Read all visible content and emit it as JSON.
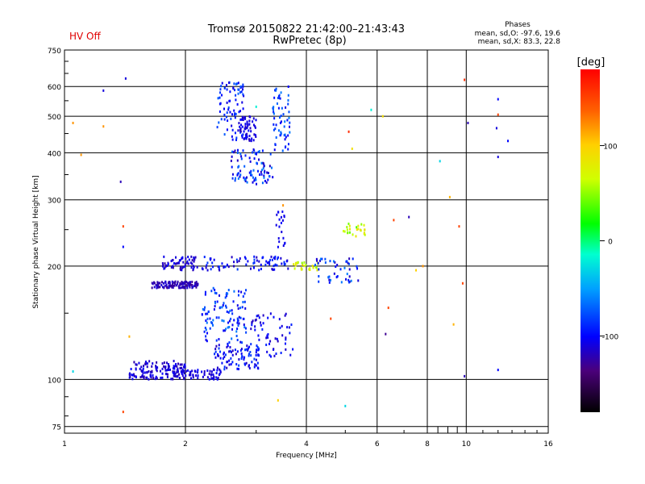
{
  "header": {
    "status": "HV Off",
    "status_color": "#e00000",
    "title": "Tromsø 20150822 21:42:00–21:43:43",
    "subtitle": "RwPretec (8p)",
    "phases_heading": "Phases",
    "phases_o": "mean, sd,O: -97.6, 19.6",
    "phases_x": "mean, sd,X:  83.3, 22.8"
  },
  "chart_data": {
    "type": "scatter",
    "xlabel": "Frequency [MHz]",
    "ylabel": "Stationary phase Virtual Height [km]",
    "xscale": "log",
    "yscale": "log",
    "xlim": [
      1,
      16
    ],
    "ylim": [
      72,
      750
    ],
    "x_ticks": [
      1,
      2,
      4,
      6,
      8,
      10,
      16
    ],
    "y_ticks": [
      75,
      100,
      200,
      300,
      400,
      500,
      600,
      750
    ],
    "grid": true,
    "colorbar": {
      "label": "[deg]",
      "range": [
        -180,
        180
      ],
      "ticks": [
        100,
        0,
        -100
      ],
      "colormap": "rainbow"
    },
    "clusters": [
      {
        "f": [
          1.45,
          2.0
        ],
        "h": [
          100,
          112
        ],
        "n": 140,
        "phase": [
          -125,
          -100
        ]
      },
      {
        "f": [
          1.9,
          2.45
        ],
        "h": [
          100,
          106
        ],
        "n": 60,
        "phase": [
          -120,
          -100
        ]
      },
      {
        "f": [
          2.35,
          3.1
        ],
        "h": [
          106,
          125
        ],
        "n": 90,
        "phase": [
          -120,
          -80
        ]
      },
      {
        "f": [
          2.2,
          2.85
        ],
        "h": [
          125,
          175
        ],
        "n": 110,
        "phase": [
          -110,
          -60
        ]
      },
      {
        "f": [
          2.9,
          3.7
        ],
        "h": [
          115,
          150
        ],
        "n": 60,
        "phase": [
          -120,
          -90
        ]
      },
      {
        "f": [
          1.65,
          2.15
        ],
        "h": [
          175,
          182
        ],
        "n": 120,
        "phase": [
          -130,
          -110
        ]
      },
      {
        "f": [
          1.75,
          2.15
        ],
        "h": [
          195,
          212
        ],
        "n": 60,
        "phase": [
          -125,
          -100
        ]
      },
      {
        "f": [
          2.2,
          3.8
        ],
        "h": [
          195,
          212
        ],
        "n": 80,
        "phase": [
          -120,
          -80
        ]
      },
      {
        "f": [
          3.7,
          4.3
        ],
        "h": [
          195,
          205
        ],
        "n": 25,
        "phase": [
          40,
          90
        ]
      },
      {
        "f": [
          4.2,
          5.4
        ],
        "h": [
          180,
          210
        ],
        "n": 45,
        "phase": [
          -120,
          -60
        ]
      },
      {
        "f": [
          4.9,
          5.6
        ],
        "h": [
          240,
          260
        ],
        "n": 25,
        "phase": [
          30,
          90
        ]
      },
      {
        "f": [
          3.35,
          3.55
        ],
        "h": [
          220,
          280
        ],
        "n": 20,
        "phase": [
          -110,
          -100
        ]
      },
      {
        "f": [
          2.4,
          2.8
        ],
        "h": [
          430,
          620
        ],
        "n": 80,
        "phase": [
          -110,
          -70
        ]
      },
      {
        "f": [
          2.7,
          3.0
        ],
        "h": [
          430,
          500
        ],
        "n": 60,
        "phase": [
          -120,
          -100
        ]
      },
      {
        "f": [
          2.6,
          3.3
        ],
        "h": [
          330,
          410
        ],
        "n": 90,
        "phase": [
          -120,
          -60
        ]
      },
      {
        "f": [
          3.3,
          3.65
        ],
        "h": [
          400,
          600
        ],
        "n": 60,
        "phase": [
          -110,
          -60
        ]
      }
    ],
    "scattered": [
      {
        "f": 1.05,
        "h": 480,
        "phase": 120
      },
      {
        "f": 1.1,
        "h": 395,
        "phase": 120
      },
      {
        "f": 1.25,
        "h": 470,
        "phase": 120
      },
      {
        "f": 1.4,
        "h": 255,
        "phase": 150
      },
      {
        "f": 1.4,
        "h": 225,
        "phase": -100
      },
      {
        "f": 1.45,
        "h": 130,
        "phase": 110
      },
      {
        "f": 1.4,
        "h": 82,
        "phase": 150
      },
      {
        "f": 1.05,
        "h": 105,
        "phase": -30
      },
      {
        "f": 1.25,
        "h": 585,
        "phase": -110
      },
      {
        "f": 1.42,
        "h": 630,
        "phase": -110
      },
      {
        "f": 1.38,
        "h": 335,
        "phase": -120
      },
      {
        "f": 3.0,
        "h": 530,
        "phase": -20
      },
      {
        "f": 3.5,
        "h": 290,
        "phase": 120
      },
      {
        "f": 4.6,
        "h": 145,
        "phase": 150
      },
      {
        "f": 5.2,
        "h": 410,
        "phase": 90
      },
      {
        "f": 5.1,
        "h": 455,
        "phase": 160
      },
      {
        "f": 5.8,
        "h": 520,
        "phase": -20
      },
      {
        "f": 6.2,
        "h": 500,
        "phase": 90
      },
      {
        "f": 6.4,
        "h": 155,
        "phase": 150
      },
      {
        "f": 6.3,
        "h": 132,
        "phase": -130
      },
      {
        "f": 6.6,
        "h": 265,
        "phase": 150
      },
      {
        "f": 7.2,
        "h": 270,
        "phase": -120
      },
      {
        "f": 7.5,
        "h": 195,
        "phase": 100
      },
      {
        "f": 7.8,
        "h": 200,
        "phase": 120
      },
      {
        "f": 8.6,
        "h": 380,
        "phase": -30
      },
      {
        "f": 9.1,
        "h": 305,
        "phase": 110
      },
      {
        "f": 9.3,
        "h": 140,
        "phase": 110
      },
      {
        "f": 9.6,
        "h": 255,
        "phase": 150
      },
      {
        "f": 9.9,
        "h": 625,
        "phase": 160
      },
      {
        "f": 10.1,
        "h": 480,
        "phase": -120
      },
      {
        "f": 9.8,
        "h": 180,
        "phase": 150
      },
      {
        "f": 9.9,
        "h": 102,
        "phase": -120
      },
      {
        "f": 12.0,
        "h": 555,
        "phase": -100
      },
      {
        "f": 12.0,
        "h": 505,
        "phase": 150
      },
      {
        "f": 11.9,
        "h": 465,
        "phase": -110
      },
      {
        "f": 12.0,
        "h": 390,
        "phase": -110
      },
      {
        "f": 12.7,
        "h": 430,
        "phase": -100
      },
      {
        "f": 12.0,
        "h": 106,
        "phase": -100
      },
      {
        "f": 5.0,
        "h": 85,
        "phase": -30
      },
      {
        "f": 3.4,
        "h": 88,
        "phase": 100
      }
    ]
  }
}
